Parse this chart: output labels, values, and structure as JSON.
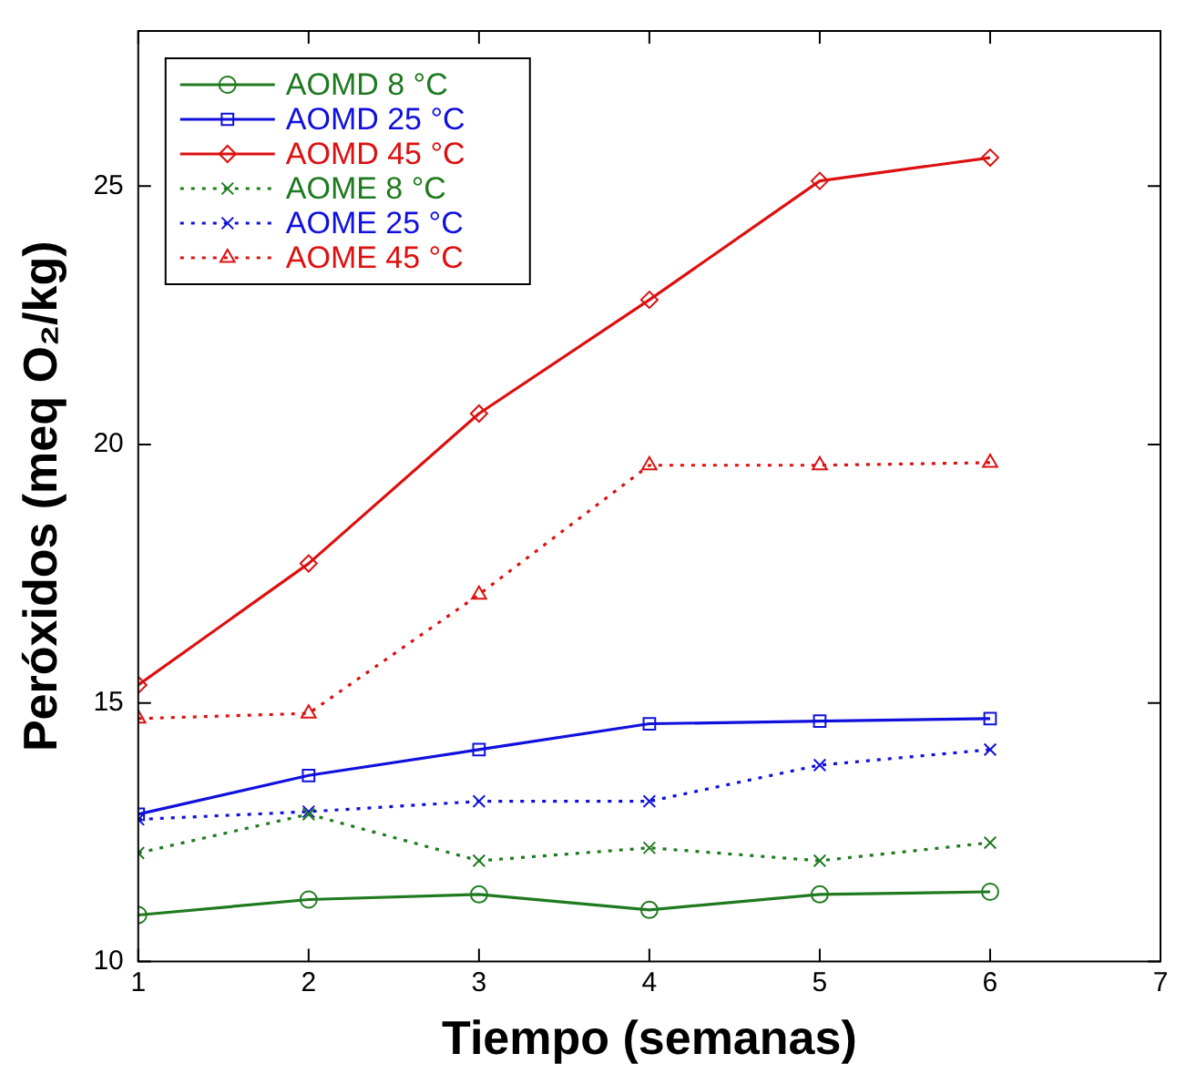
{
  "chart_data": {
    "type": "line",
    "xlabel": "Tiempo (semanas)",
    "ylabel": "Peróxidos (meq O₂/kg)",
    "x": [
      1,
      2,
      3,
      4,
      5,
      6
    ],
    "xlim": [
      1,
      7
    ],
    "xticks": [
      1,
      2,
      3,
      4,
      5,
      6,
      7
    ],
    "ylim": [
      10,
      28
    ],
    "yticks": [
      10,
      15,
      20,
      25
    ],
    "grid": false,
    "legend": "top left",
    "series": [
      {
        "name": "AOMD 8 °C",
        "color": "#1f7a1f",
        "marker": "circle",
        "line_style": "solid",
        "values": [
          10.9,
          11.2,
          11.3,
          11.0,
          11.3,
          11.35
        ]
      },
      {
        "name": "AOMD 25 °C",
        "color": "#1010dd",
        "marker": "square",
        "line_style": "solid",
        "values": [
          12.85,
          13.6,
          14.1,
          14.6,
          14.65,
          14.7
        ]
      },
      {
        "name": "AOMD 45 °C",
        "color": "#dd1010",
        "marker": "diamond",
        "line_style": "solid",
        "values": [
          15.35,
          17.7,
          20.6,
          22.8,
          25.1,
          25.55
        ]
      },
      {
        "name": "AOME 8 °C",
        "color": "#1f7a1f",
        "marker": "cross",
        "line_style": "dotted",
        "values": [
          12.1,
          12.85,
          11.95,
          12.2,
          11.95,
          12.3
        ]
      },
      {
        "name": "AOME 25 °C",
        "color": "#1010dd",
        "marker": "cross",
        "line_style": "dotted",
        "values": [
          12.75,
          12.9,
          13.1,
          13.1,
          13.8,
          14.1
        ]
      },
      {
        "name": "AOME 45 °C",
        "color": "#dd1010",
        "marker": "triangle",
        "line_style": "dotted",
        "values": [
          14.7,
          14.8,
          17.1,
          19.6,
          19.6,
          19.65
        ]
      }
    ]
  }
}
